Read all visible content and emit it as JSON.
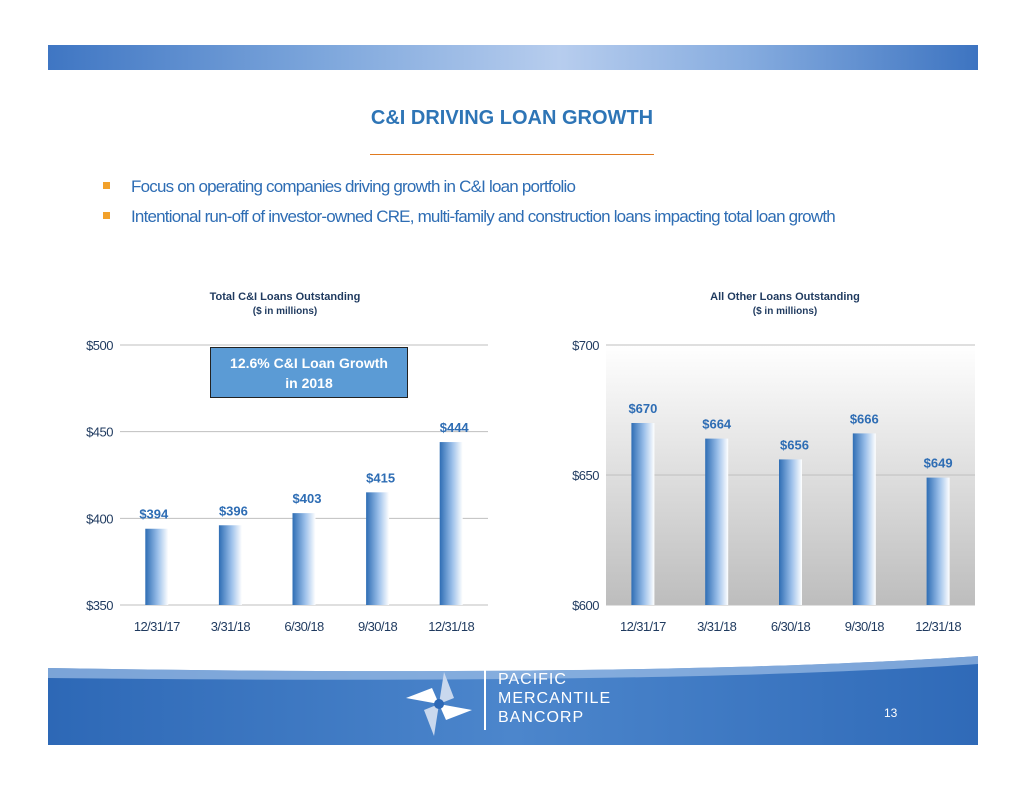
{
  "slide": {
    "title": "C&I DRIVING LOAN GROWTH",
    "bullets": [
      "Focus on operating companies driving growth in C&I loan portfolio",
      "Intentional run-off of investor-owned CRE, multi-family and construction loans impacting total loan growth"
    ],
    "callout": {
      "line1": "12.6% C&I Loan Growth",
      "line2": "in 2018"
    },
    "footer": {
      "brand_lines": [
        "PACIFIC",
        "MERCANTILE",
        "BANCORP"
      ],
      "page_number": "13"
    },
    "colors": {
      "title": "#2e75b6",
      "bullet_text": "#2e6db4",
      "bullet_marker": "#f2a12b",
      "rule": "#e07a1f",
      "bar_dark": "#2e6db4",
      "bar_light": "#ffffff",
      "callout_bg": "#5b9bd5",
      "footer_bg": "#3a76c0"
    }
  },
  "chart_data": [
    {
      "type": "bar",
      "title": "Total C&I Loans Outstanding",
      "subtitle": "($ in millions)",
      "categories": [
        "12/31/17",
        "3/31/18",
        "6/30/18",
        "9/30/18",
        "12/31/18"
      ],
      "values": [
        394,
        396,
        403,
        415,
        444
      ],
      "data_labels": [
        "$394",
        "$396",
        "$403",
        "$415",
        "$444"
      ],
      "ylim": [
        350,
        500
      ],
      "yticks": [
        350,
        400,
        450,
        500
      ],
      "ytick_labels": [
        "$350",
        "$400",
        "$450",
        "$500"
      ],
      "grid": true,
      "legend": "none"
    },
    {
      "type": "bar",
      "title": "All Other Loans Outstanding",
      "subtitle": "($ in millions)",
      "categories": [
        "12/31/17",
        "3/31/18",
        "6/30/18",
        "9/30/18",
        "12/31/18"
      ],
      "values": [
        670,
        664,
        656,
        666,
        649
      ],
      "data_labels": [
        "$670",
        "$664",
        "$656",
        "$666",
        "$649"
      ],
      "ylim": [
        600,
        700
      ],
      "yticks": [
        600,
        650,
        700
      ],
      "ytick_labels": [
        "$600",
        "$650",
        "$700"
      ],
      "grid": true,
      "legend": "none"
    }
  ]
}
